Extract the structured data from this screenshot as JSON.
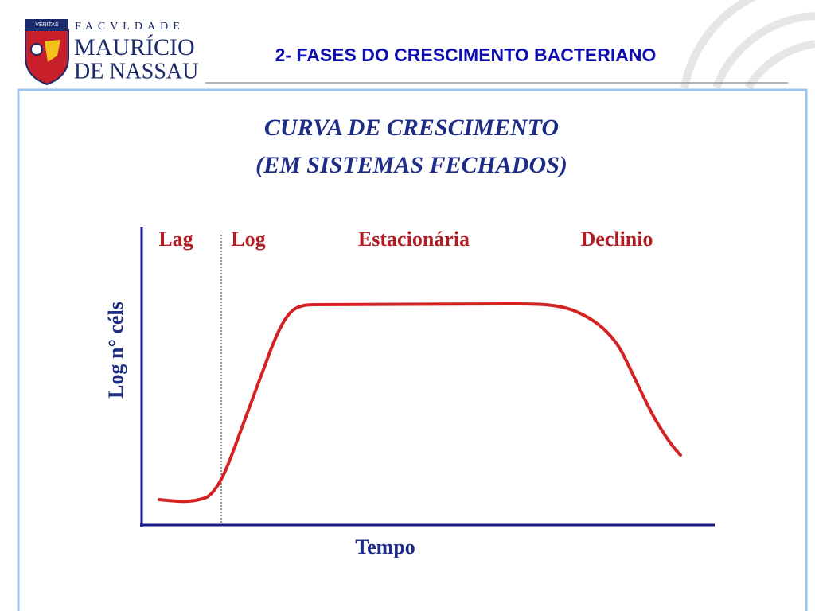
{
  "header": {
    "logo": {
      "motto": "VERITAS",
      "line1": "FACVLDADE",
      "line2": "MAURÍCIO",
      "line3": "DE NASSAU"
    },
    "title": "2- FASES DO CRESCIMENTO BACTERIANO"
  },
  "figure": {
    "title": [
      "CURVA DE CRESCIMENTO",
      "(EM SISTEMAS FECHADOS)"
    ],
    "phases": [
      "Lag",
      "Log",
      "Estacionária",
      "Declinio"
    ],
    "y_label": "Log n° céls",
    "x_label": "Tempo"
  }
}
